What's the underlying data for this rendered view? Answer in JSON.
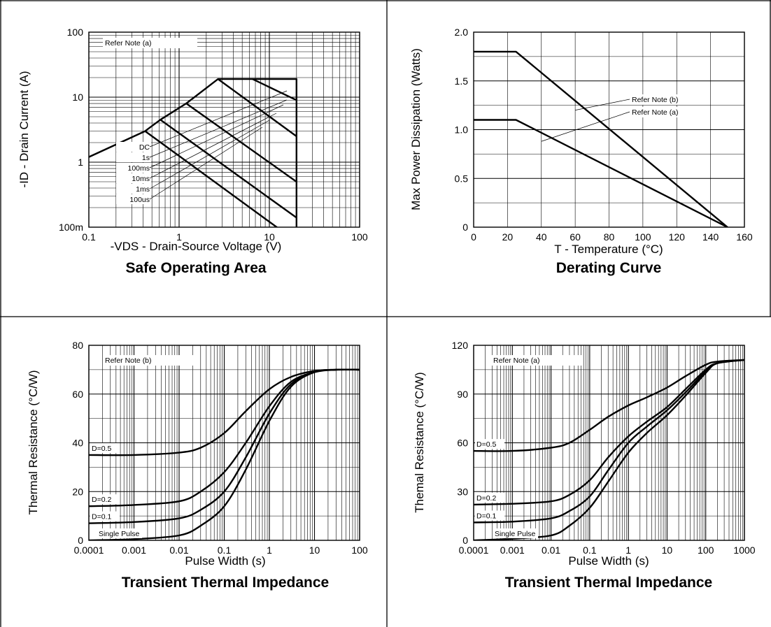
{
  "panels": [
    {
      "id": "soa",
      "title": "Safe Operating Area",
      "xlabel": "-VDS - Drain-Source Voltage (V)",
      "ylabel": "-ID - Drain Current (A)",
      "notes": [
        "Refer Note (a)"
      ],
      "xticks": [
        "0.1",
        "1",
        "10",
        "100"
      ],
      "yticks": [
        "100m",
        "1",
        "10",
        "100"
      ]
    },
    {
      "id": "derating",
      "title": "Derating Curve",
      "xlabel": "T - Temperature (°C)",
      "ylabel": "Max Power Dissipation (Watts)",
      "notes": [
        "Refer Note (b)",
        "Refer Note (a)"
      ],
      "xticks": [
        "0",
        "20",
        "40",
        "60",
        "80",
        "100",
        "120",
        "140",
        "160"
      ],
      "yticks": [
        "0",
        "0.5",
        "1.0",
        "1.5",
        "2.0"
      ]
    },
    {
      "id": "zth_b",
      "title": "Transient Thermal Impedance",
      "xlabel": "Pulse Width (s)",
      "ylabel": "Thermal Resistance (°C/W)",
      "notes": [
        "Refer Note (b)"
      ],
      "xticks": [
        "0.0001",
        "0.001",
        "0.01",
        "0.1",
        "1",
        "10",
        "100"
      ],
      "yticks": [
        "0",
        "20",
        "40",
        "60",
        "80"
      ]
    },
    {
      "id": "zth_a",
      "title": "Transient Thermal Impedance",
      "xlabel": "Pulse Width (s)",
      "ylabel": "Themal Resistance (°C/W)",
      "notes": [
        "Refer Note (a)"
      ],
      "xticks": [
        "0.0001",
        "0.001",
        "0.01",
        "0.1",
        "1",
        "10",
        "100",
        "1000"
      ],
      "yticks": [
        "0",
        "30",
        "60",
        "90",
        "120"
      ]
    }
  ],
  "chart_data": [
    {
      "type": "line",
      "title": "Safe Operating Area",
      "xlabel": "-VDS - Drain-Source Voltage (V)",
      "ylabel": "-ID - Drain Current (A)",
      "xscale": "log",
      "yscale": "log",
      "xlim": [
        0.1,
        100
      ],
      "ylim": [
        0.1,
        100
      ],
      "grid": true,
      "series": [
        {
          "name": "DC",
          "x": [
            0.1,
            0.42,
            20
          ],
          "y": [
            1.2,
            3.0,
            0.06
          ]
        },
        {
          "name": "1s",
          "x": [
            0.42,
            0.62,
            20
          ],
          "y": [
            3.0,
            4.5,
            0.14
          ]
        },
        {
          "name": "100ms",
          "x": [
            0.62,
            1.2,
            20
          ],
          "y": [
            4.5,
            8.0,
            0.5
          ]
        },
        {
          "name": "10ms",
          "x": [
            1.2,
            2.7,
            20
          ],
          "y": [
            8.0,
            19,
            2.5
          ]
        },
        {
          "name": "1ms",
          "x": [
            2.7,
            6.5,
            20
          ],
          "y": [
            19,
            19,
            9
          ]
        },
        {
          "name": "100us",
          "x": [
            6.5,
            20,
            20
          ],
          "y": [
            19,
            19,
            0.1
          ]
        }
      ]
    },
    {
      "type": "line",
      "title": "Derating Curve",
      "xlabel": "T - Temperature (°C)",
      "ylabel": "Max Power Dissipation (Watts)",
      "xlim": [
        0,
        160
      ],
      "ylim": [
        0,
        2.0
      ],
      "grid": true,
      "series": [
        {
          "name": "Refer Note (b)",
          "x": [
            0,
            25,
            150
          ],
          "y": [
            1.8,
            1.8,
            0
          ]
        },
        {
          "name": "Refer Note (a)",
          "x": [
            0,
            25,
            150
          ],
          "y": [
            1.1,
            1.1,
            0
          ]
        }
      ]
    },
    {
      "type": "line",
      "title": "Transient Thermal Impedance",
      "xlabel": "Pulse Width (s)",
      "ylabel": "Thermal Resistance (°C/W)",
      "xscale": "log",
      "xlim": [
        0.0001,
        100
      ],
      "ylim": [
        0,
        80
      ],
      "grid": true,
      "note": "Refer Note (b)",
      "series": [
        {
          "name": "D=0.5",
          "x": [
            0.0001,
            0.001,
            0.01,
            0.03,
            0.1,
            0.3,
            1,
            3,
            10,
            30,
            100
          ],
          "y": [
            35,
            35,
            36,
            38,
            44,
            53,
            62,
            67,
            69.5,
            70,
            70
          ]
        },
        {
          "name": "D=0.2",
          "x": [
            0.0001,
            0.001,
            0.01,
            0.03,
            0.1,
            0.3,
            1,
            3,
            10,
            30,
            100
          ],
          "y": [
            14,
            14.5,
            16,
            20,
            28,
            40,
            55,
            65,
            69,
            70,
            70
          ]
        },
        {
          "name": "D=0.1",
          "x": [
            0.0001,
            0.001,
            0.01,
            0.03,
            0.1,
            0.3,
            1,
            3,
            10,
            30,
            100
          ],
          "y": [
            7,
            7.5,
            9,
            12.5,
            20,
            34,
            52,
            64,
            69,
            70,
            70
          ]
        },
        {
          "name": "Single Pulse",
          "x": [
            0.0001,
            0.001,
            0.01,
            0.03,
            0.1,
            0.3,
            1,
            3,
            10,
            30,
            100
          ],
          "y": [
            0,
            0.5,
            2,
            6,
            14,
            29,
            49,
            63,
            69,
            70,
            70
          ]
        }
      ]
    },
    {
      "type": "line",
      "title": "Transient Thermal Impedance",
      "xlabel": "Pulse Width (s)",
      "ylabel": "Themal Resistance (°C/W)",
      "xscale": "log",
      "xlim": [
        0.0001,
        1000
      ],
      "ylim": [
        0,
        120
      ],
      "grid": true,
      "note": "Refer Note (a)",
      "series": [
        {
          "name": "D=0.5",
          "x": [
            0.0001,
            0.001,
            0.01,
            0.03,
            0.1,
            0.3,
            1,
            3,
            10,
            30,
            100,
            200,
            1000
          ],
          "y": [
            55,
            55,
            57,
            60,
            68,
            76,
            83,
            88,
            94,
            101,
            108,
            110,
            111
          ]
        },
        {
          "name": "D=0.2",
          "x": [
            0.0001,
            0.001,
            0.01,
            0.03,
            0.1,
            0.3,
            1,
            3,
            10,
            30,
            100,
            200,
            1000
          ],
          "y": [
            22,
            22.5,
            24,
            28,
            37,
            51,
            64,
            73,
            82,
            93,
            105,
            109,
            111
          ]
        },
        {
          "name": "D=0.1",
          "x": [
            0.0001,
            0.001,
            0.01,
            0.03,
            0.1,
            0.3,
            1,
            3,
            10,
            30,
            100,
            200,
            1000
          ],
          "y": [
            11,
            11.5,
            13.5,
            18,
            27,
            43,
            60,
            70,
            80,
            91,
            104,
            109,
            111
          ]
        },
        {
          "name": "Single Pulse",
          "x": [
            0.0001,
            0.001,
            0.01,
            0.03,
            0.1,
            0.3,
            1,
            3,
            10,
            30,
            100,
            200,
            1000
          ],
          "y": [
            0,
            1,
            3,
            9,
            20,
            36,
            54,
            66,
            77,
            89,
            103,
            109,
            111
          ]
        }
      ]
    }
  ]
}
